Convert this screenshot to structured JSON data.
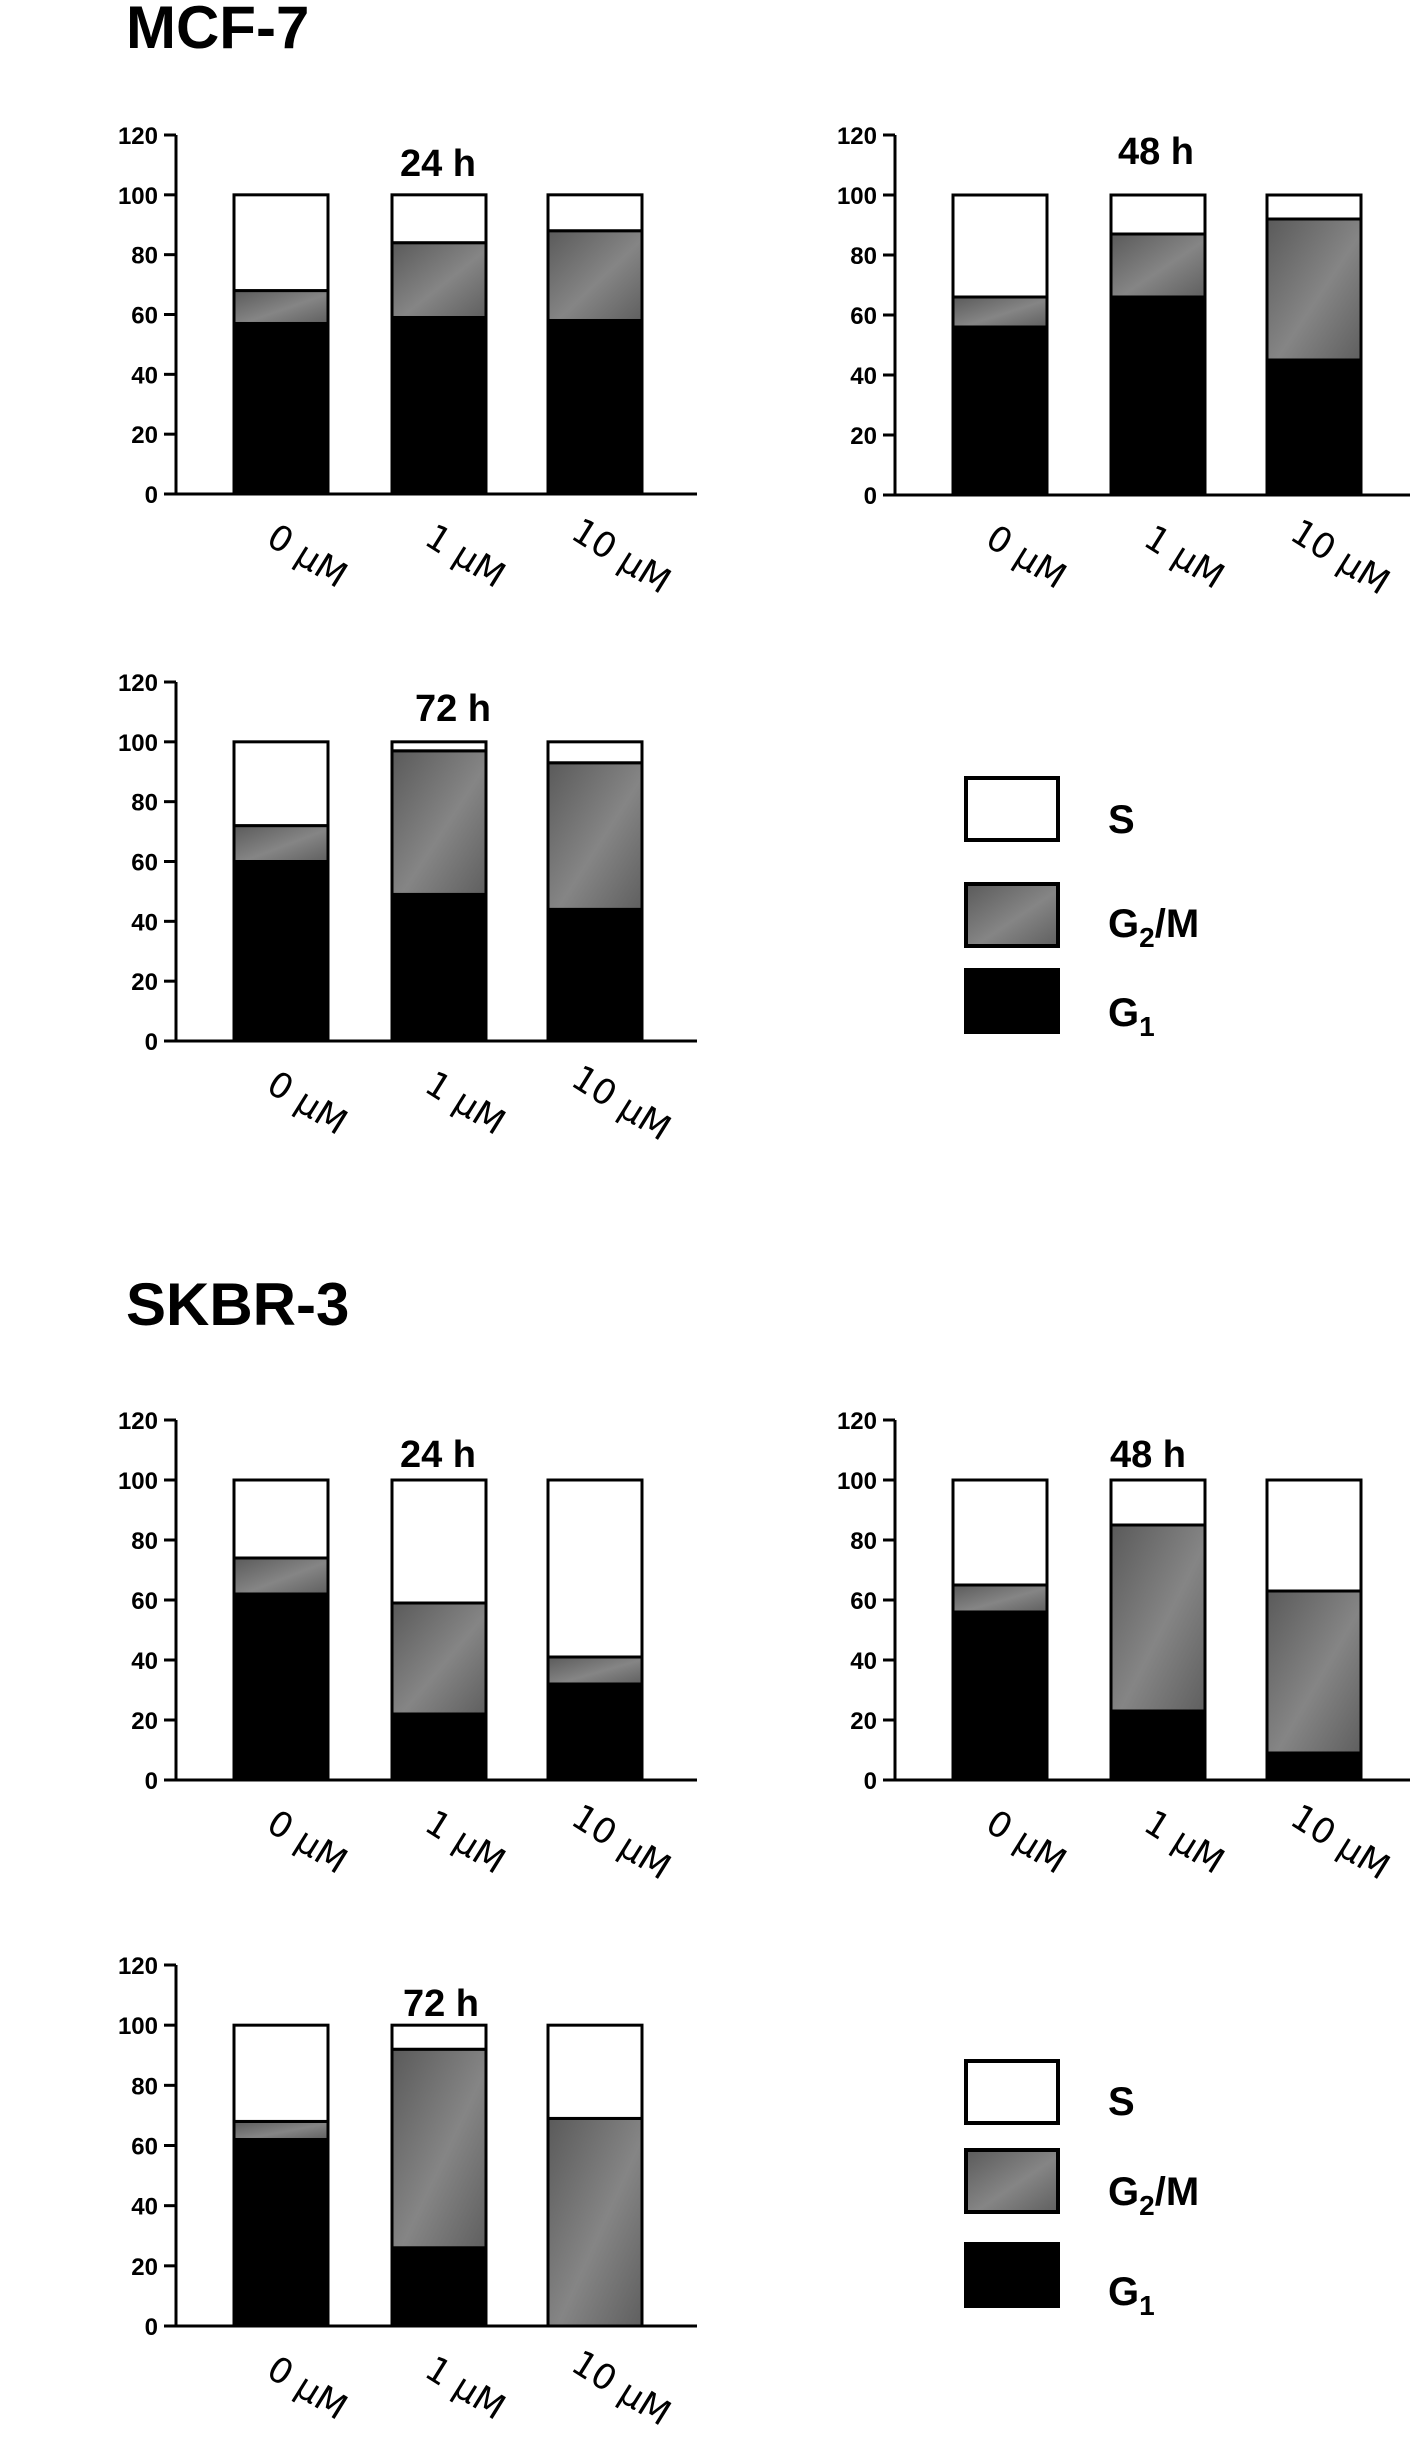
{
  "figure": {
    "sections": [
      {
        "title": "MCF-7",
        "legend": [
          {
            "key": "S",
            "label": "S"
          },
          {
            "key": "G2M",
            "label": "G",
            "sub": "2",
            "suffix": "/M"
          },
          {
            "key": "G1",
            "label": "G",
            "sub": "1",
            "suffix": ""
          }
        ]
      },
      {
        "title": "SKBR-3",
        "legend": [
          {
            "key": "S",
            "label": "S"
          },
          {
            "key": "G2M",
            "label": "G",
            "sub": "2",
            "suffix": "/M"
          },
          {
            "key": "G1",
            "label": "G",
            "sub": "1",
            "suffix": ""
          }
        ]
      }
    ],
    "colors": {
      "S": "#ffffff",
      "G2M": "#707070",
      "G2M_light": "#8a8a8a",
      "G2M_dark": "#555555",
      "G1": "#000000",
      "axis": "#000000"
    }
  },
  "chart_data": [
    {
      "type": "bar",
      "stacked": true,
      "section": "MCF-7",
      "title": "24 h",
      "categories": [
        "0 μM",
        "1 μM",
        "10 μM"
      ],
      "ylim": [
        0,
        120
      ],
      "yticks": [
        0,
        20,
        40,
        60,
        80,
        100,
        120
      ],
      "series": [
        {
          "name": "G1",
          "values": [
            57,
            59,
            58
          ]
        },
        {
          "name": "G2/M",
          "values": [
            11,
            25,
            30
          ]
        },
        {
          "name": "S",
          "values": [
            32,
            16,
            12
          ]
        }
      ]
    },
    {
      "type": "bar",
      "stacked": true,
      "section": "MCF-7",
      "title": "48 h",
      "categories": [
        "0 μM",
        "1 μM",
        "10 μM"
      ],
      "ylim": [
        0,
        120
      ],
      "yticks": [
        0,
        20,
        40,
        60,
        80,
        100,
        120
      ],
      "series": [
        {
          "name": "G1",
          "values": [
            56,
            66,
            45
          ]
        },
        {
          "name": "G2/M",
          "values": [
            10,
            21,
            47
          ]
        },
        {
          "name": "S",
          "values": [
            34,
            13,
            8
          ]
        }
      ]
    },
    {
      "type": "bar",
      "stacked": true,
      "section": "MCF-7",
      "title": "72 h",
      "categories": [
        "0 μM",
        "1 μM",
        "10 μM"
      ],
      "ylim": [
        0,
        120
      ],
      "yticks": [
        0,
        20,
        40,
        60,
        80,
        100,
        120
      ],
      "series": [
        {
          "name": "G1",
          "values": [
            60,
            49,
            44
          ]
        },
        {
          "name": "G2/M",
          "values": [
            12,
            48,
            49
          ]
        },
        {
          "name": "S",
          "values": [
            28,
            3,
            7
          ]
        }
      ]
    },
    {
      "type": "bar",
      "stacked": true,
      "section": "SKBR-3",
      "title": "24 h",
      "categories": [
        "0 μM",
        "1 μM",
        "10 μM"
      ],
      "ylim": [
        0,
        120
      ],
      "yticks": [
        0,
        20,
        40,
        60,
        80,
        100,
        120
      ],
      "series": [
        {
          "name": "G1",
          "values": [
            62,
            22,
            32
          ]
        },
        {
          "name": "G2/M",
          "values": [
            12,
            37,
            9
          ]
        },
        {
          "name": "S",
          "values": [
            26,
            41,
            59
          ]
        }
      ]
    },
    {
      "type": "bar",
      "stacked": true,
      "section": "SKBR-3",
      "title": "48 h",
      "categories": [
        "0 μM",
        "1 μM",
        "10 μM"
      ],
      "ylim": [
        0,
        120
      ],
      "yticks": [
        0,
        20,
        40,
        60,
        80,
        100,
        120
      ],
      "series": [
        {
          "name": "G1",
          "values": [
            56,
            23,
            9
          ]
        },
        {
          "name": "G2/M",
          "values": [
            9,
            62,
            54
          ]
        },
        {
          "name": "S",
          "values": [
            35,
            15,
            37
          ]
        }
      ]
    },
    {
      "type": "bar",
      "stacked": true,
      "section": "SKBR-3",
      "title": "72 h",
      "categories": [
        "0 μM",
        "1 μM",
        "10 μM"
      ],
      "ylim": [
        0,
        120
      ],
      "yticks": [
        0,
        20,
        40,
        60,
        80,
        100,
        120
      ],
      "series": [
        {
          "name": "G1",
          "values": [
            62,
            26,
            0
          ]
        },
        {
          "name": "G2/M",
          "values": [
            6,
            66,
            69
          ]
        },
        {
          "name": "S",
          "values": [
            32,
            8,
            31
          ]
        }
      ]
    }
  ]
}
